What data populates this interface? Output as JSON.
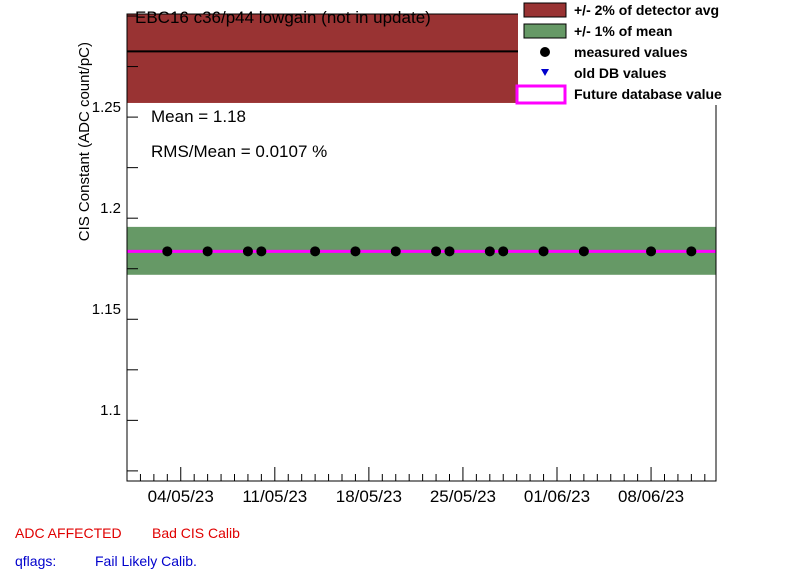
{
  "chart_data": {
    "type": "scatter",
    "title": "EBC16 c36/p44 lowgain (not in update)",
    "ylabel": "CIS Constant (ADC count/pC)",
    "xlabel": "",
    "ylim": [
      1.065,
      1.296
    ],
    "xlim": [
      "2023-04-30T00:00",
      "2023-06-12T20:00"
    ],
    "x_tick_labels": [
      "04/05/23",
      "11/05/23",
      "18/05/23",
      "25/05/23",
      "01/06/23",
      "08/06/23"
    ],
    "x_tick_values": [
      "2023-05-04",
      "2023-05-11",
      "2023-05-18",
      "2023-05-25",
      "2023-06-01",
      "2023-06-08"
    ],
    "y_tick_labels": [
      "1.1",
      "1.15",
      "1.2",
      "1.25"
    ],
    "y_tick_values": [
      1.1,
      1.15,
      1.2,
      1.25
    ],
    "detector_avg": 1.2775,
    "detector_band": [
      1.252,
      1.303
    ],
    "mean_band": [
      1.167,
      1.1907
    ],
    "future_db_value": 1.1786,
    "series": [
      {
        "name": "measured values",
        "x": [
          "2023-05-03",
          "2023-05-06",
          "2023-05-09",
          "2023-05-10",
          "2023-05-14",
          "2023-05-17",
          "2023-05-20",
          "2023-05-23",
          "2023-05-24",
          "2023-05-27",
          "2023-05-28",
          "2023-05-31",
          "2023-06-03",
          "2023-06-08",
          "2023-06-11"
        ],
        "y": [
          1.1786,
          1.1786,
          1.1786,
          1.1786,
          1.1786,
          1.1786,
          1.1786,
          1.1786,
          1.1786,
          1.1786,
          1.1786,
          1.1786,
          1.1786,
          1.1786,
          1.1786
        ]
      }
    ],
    "legend": [
      {
        "label": "+/- 2% of detector avg",
        "color": "#993333",
        "kind": "box"
      },
      {
        "label": "+/- 1% of mean",
        "color": "#669966",
        "kind": "box"
      },
      {
        "label": "measured values",
        "color": "#000000",
        "kind": "dot"
      },
      {
        "label": "old DB values",
        "color": "#0000cc",
        "kind": "triangle"
      },
      {
        "label": "Future database value",
        "color": "#ff00ff",
        "kind": "outline"
      }
    ],
    "legend_position": "top-right",
    "stats": {
      "mean_text": "Mean = 1.18",
      "rms_text": "RMS/Mean = 0.0107 %"
    },
    "colors": {
      "detector_band": "#993333",
      "mean_band": "#669966",
      "future_line": "#ff00ff",
      "points": "#000000"
    }
  },
  "footer": {
    "adc_label": "ADC AFFECTED",
    "cis_label": "Bad CIS Calib",
    "qflags_label": "qflags:",
    "qflags_value": "Fail Likely Calib."
  }
}
